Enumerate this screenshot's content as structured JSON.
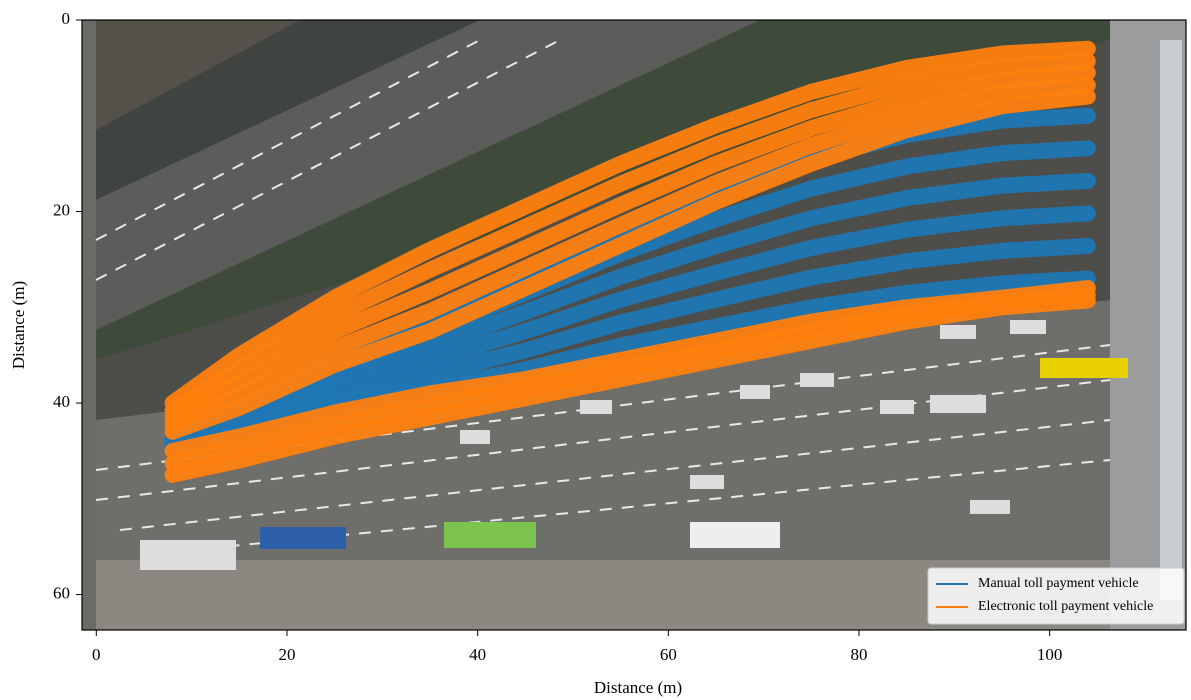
{
  "chart_data": {
    "type": "line",
    "xlabel": "Distance (m)",
    "ylabel": "Distance (m)",
    "xlim": [
      -1.5,
      114.3
    ],
    "ylim": [
      0,
      63.7
    ],
    "invert_y": true,
    "xticks": [
      0,
      20,
      40,
      60,
      80,
      100
    ],
    "yticks": [
      0,
      20,
      40,
      60
    ],
    "legend": "lower right",
    "x": [
      8,
      15,
      25,
      35,
      45,
      55,
      65,
      75,
      85,
      95,
      104
    ],
    "series": [
      {
        "name": "Manual toll payment vehicle",
        "color": "#1f77b4",
        "lines": [
          [
            43.5,
            40.5,
            35.5,
            31,
            26.5,
            22,
            18,
            14.5,
            12,
            10.5,
            10
          ],
          [
            43.7,
            41,
            36.5,
            32.5,
            28.5,
            24.4,
            20.8,
            17.6,
            15.3,
            13.9,
            13.4
          ],
          [
            43.9,
            41.5,
            37.5,
            34,
            30.5,
            26.8,
            23.6,
            20.7,
            18.6,
            17.3,
            16.8
          ],
          [
            44.1,
            42,
            38.5,
            35.5,
            32.5,
            29.2,
            26.4,
            23.8,
            21.9,
            20.7,
            20.2
          ],
          [
            44.3,
            42.5,
            39.5,
            37,
            34.5,
            31.6,
            29.2,
            26.9,
            25.2,
            24.1,
            23.6
          ],
          [
            44.5,
            43,
            40.5,
            38.5,
            36.5,
            34,
            32,
            30,
            28.5,
            27.5,
            27
          ]
        ]
      },
      {
        "name": "Electronic toll payment vehicle",
        "color": "#ff7f0e",
        "lines": [
          [
            40,
            35,
            29,
            24,
            19.5,
            15,
            11,
            7.5,
            5,
            3.5,
            3
          ],
          [
            40.8,
            36.4,
            30.8,
            26.1,
            21.6,
            17.1,
            13,
            9.4,
            6.6,
            4.9,
            4.3
          ],
          [
            41.5,
            37.8,
            32.5,
            28.3,
            23.8,
            19.3,
            15,
            11.3,
            8.3,
            6.3,
            5.5
          ],
          [
            42.3,
            39.1,
            34.3,
            30.4,
            25.9,
            21.4,
            17,
            13.1,
            9.9,
            7.6,
            6.8
          ],
          [
            43,
            40.5,
            36,
            32.5,
            28,
            23.5,
            19,
            15,
            11.5,
            9,
            8
          ],
          [
            45,
            43.5,
            41,
            39,
            37.5,
            35.5,
            33.5,
            31.5,
            30,
            29,
            28
          ],
          [
            46.3,
            44.8,
            42.3,
            40.3,
            38.5,
            36.5,
            34.5,
            32.5,
            30.8,
            29.5,
            28.7
          ],
          [
            47.5,
            46,
            43.5,
            41.5,
            39.5,
            37.5,
            35.5,
            33.5,
            31.5,
            30,
            29.3
          ]
        ]
      }
    ]
  }
}
